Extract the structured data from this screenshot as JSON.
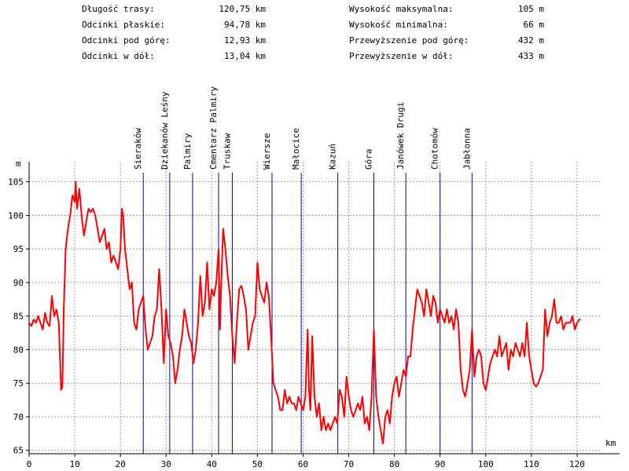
{
  "stats_left": [
    {
      "label": "Długość trasy:",
      "value": "120,75 km"
    },
    {
      "label": "Odcinki płaskie:",
      "value": "94,78 km"
    },
    {
      "label": "Odcinki pod górę:",
      "value": "12,93 km"
    },
    {
      "label": "Odcinki w dół:",
      "value": "13,04 km"
    }
  ],
  "stats_right": [
    {
      "label": "Wysokość maksymalna:",
      "value": "105 m"
    },
    {
      "label": "Wysokość minimalna:",
      "value": "66 m"
    },
    {
      "label": "Przewyższenie pod górę:",
      "value": "432 m"
    },
    {
      "label": "Przewyższenie w dół:",
      "value": "433 m"
    }
  ],
  "chart_data": {
    "type": "line",
    "ylabel": "m",
    "xlabel": "km",
    "xlim": [
      0,
      125
    ],
    "ylim": [
      64.5,
      108
    ],
    "xticks": [
      0,
      10,
      20,
      30,
      40,
      50,
      60,
      70,
      80,
      90,
      100,
      110,
      120
    ],
    "yticks": [
      65,
      70,
      75,
      80,
      85,
      90,
      95,
      100,
      105
    ],
    "grid": true,
    "line_color": "#ff0000",
    "marker_color": "#0000cc",
    "markers": [
      {
        "name": "Sieraków",
        "km": 25
      },
      {
        "name": "Dziekanów Leśny",
        "km": 30.8
      },
      {
        "name": "Palmiry",
        "km": 35.8
      },
      {
        "name": "Cmentarz Palmiry",
        "km": 41.5
      },
      {
        "name": "Truskaw",
        "km": 44.5
      },
      {
        "name": "Wiersze",
        "km": 53.2
      },
      {
        "name": "Małocice",
        "km": 59.6
      },
      {
        "name": "Kazuń",
        "km": 67.6
      },
      {
        "name": "Góra",
        "km": 75.5
      },
      {
        "name": "Janówek Drugi",
        "km": 82.5
      },
      {
        "name": "Chotomów",
        "km": 90
      },
      {
        "name": "Jabłonna",
        "km": 97
      }
    ],
    "profile": [
      [
        0,
        84
      ],
      [
        0.5,
        83.5
      ],
      [
        1,
        84.5
      ],
      [
        1.5,
        84
      ],
      [
        2,
        85
      ],
      [
        2.5,
        84
      ],
      [
        3,
        83
      ],
      [
        3.5,
        85.5
      ],
      [
        4,
        84
      ],
      [
        4.5,
        83.5
      ],
      [
        5,
        88
      ],
      [
        5.5,
        85
      ],
      [
        6,
        86
      ],
      [
        6.5,
        84
      ],
      [
        7,
        74
      ],
      [
        7.3,
        74.5
      ],
      [
        7.6,
        86
      ],
      [
        8,
        95
      ],
      [
        8.5,
        98
      ],
      [
        9,
        100
      ],
      [
        9.5,
        103
      ],
      [
        10,
        102
      ],
      [
        10.2,
        105
      ],
      [
        10.5,
        101
      ],
      [
        11,
        104
      ],
      [
        11.5,
        100
      ],
      [
        12,
        97
      ],
      [
        12.5,
        99
      ],
      [
        13,
        101
      ],
      [
        13.5,
        100.5
      ],
      [
        14,
        101
      ],
      [
        14.5,
        100
      ],
      [
        15,
        98
      ],
      [
        15.5,
        96
      ],
      [
        16,
        97
      ],
      [
        16.5,
        98
      ],
      [
        17,
        95
      ],
      [
        17.5,
        96
      ],
      [
        18,
        93
      ],
      [
        18.5,
        94
      ],
      [
        19,
        93
      ],
      [
        19.5,
        92
      ],
      [
        20,
        95
      ],
      [
        20.3,
        101
      ],
      [
        20.6,
        100
      ],
      [
        21,
        95
      ],
      [
        21.5,
        92
      ],
      [
        22,
        89
      ],
      [
        22.5,
        90
      ],
      [
        23,
        84
      ],
      [
        23.5,
        83
      ],
      [
        24,
        86
      ],
      [
        24.5,
        87
      ],
      [
        25,
        88
      ],
      [
        25.5,
        83
      ],
      [
        26,
        80
      ],
      [
        26.5,
        81
      ],
      [
        27,
        82
      ],
      [
        27.5,
        85
      ],
      [
        28,
        86
      ],
      [
        28.5,
        92
      ],
      [
        29,
        86
      ],
      [
        29.5,
        78
      ],
      [
        30,
        86
      ],
      [
        30.5,
        82
      ],
      [
        31,
        81
      ],
      [
        31.5,
        79
      ],
      [
        32,
        75
      ],
      [
        32.5,
        77
      ],
      [
        33,
        80
      ],
      [
        33.5,
        82
      ],
      [
        34,
        86
      ],
      [
        34.5,
        84
      ],
      [
        35,
        82
      ],
      [
        35.5,
        81
      ],
      [
        36,
        78
      ],
      [
        36.5,
        80
      ],
      [
        37,
        84
      ],
      [
        37.5,
        91
      ],
      [
        38,
        85
      ],
      [
        38.5,
        87
      ],
      [
        39,
        93
      ],
      [
        39.5,
        86
      ],
      [
        40,
        89
      ],
      [
        40.5,
        88
      ],
      [
        41,
        90
      ],
      [
        41.5,
        95
      ],
      [
        41.8,
        83
      ],
      [
        42,
        88
      ],
      [
        42.5,
        98
      ],
      [
        43,
        95
      ],
      [
        43.5,
        91
      ],
      [
        44,
        88
      ],
      [
        44.5,
        82
      ],
      [
        45,
        78
      ],
      [
        45.5,
        84
      ],
      [
        46,
        89
      ],
      [
        46.5,
        89.5
      ],
      [
        47,
        88
      ],
      [
        47.5,
        86
      ],
      [
        48,
        80
      ],
      [
        48.5,
        82
      ],
      [
        49,
        84
      ],
      [
        49.5,
        85
      ],
      [
        50,
        93
      ],
      [
        50.5,
        89
      ],
      [
        51,
        88
      ],
      [
        51.5,
        87
      ],
      [
        52,
        90
      ],
      [
        52.5,
        88
      ],
      [
        53,
        82
      ],
      [
        53.5,
        75
      ],
      [
        54,
        74
      ],
      [
        54.5,
        73
      ],
      [
        55,
        71
      ],
      [
        55.5,
        71
      ],
      [
        56,
        74
      ],
      [
        56.5,
        72
      ],
      [
        57,
        73
      ],
      [
        57.5,
        72
      ],
      [
        58,
        72
      ],
      [
        58.5,
        71
      ],
      [
        59,
        73
      ],
      [
        59.5,
        72
      ],
      [
        60,
        71
      ],
      [
        60.5,
        73
      ],
      [
        61,
        83
      ],
      [
        61.3,
        74
      ],
      [
        61.6,
        71
      ],
      [
        62,
        82
      ],
      [
        62.5,
        73
      ],
      [
        63,
        70
      ],
      [
        63.5,
        72
      ],
      [
        64,
        68
      ],
      [
        64.5,
        70
      ],
      [
        65,
        68
      ],
      [
        65.5,
        69
      ],
      [
        66,
        68
      ],
      [
        66.5,
        69
      ],
      [
        67,
        70
      ],
      [
        67.5,
        69
      ],
      [
        68,
        74
      ],
      [
        68.5,
        73
      ],
      [
        69,
        70
      ],
      [
        69.5,
        76
      ],
      [
        70,
        73
      ],
      [
        70.5,
        71
      ],
      [
        71,
        70
      ],
      [
        71.5,
        71
      ],
      [
        72,
        72
      ],
      [
        72.5,
        71
      ],
      [
        73,
        73
      ],
      [
        73.5,
        69
      ],
      [
        74,
        70
      ],
      [
        74.5,
        68
      ],
      [
        75,
        73
      ],
      [
        75.5,
        83
      ],
      [
        76,
        73
      ],
      [
        76.5,
        70
      ],
      [
        77,
        68
      ],
      [
        77.5,
        66
      ],
      [
        78,
        70
      ],
      [
        78.5,
        71
      ],
      [
        79,
        69
      ],
      [
        79.5,
        73
      ],
      [
        80,
        75
      ],
      [
        80.5,
        76
      ],
      [
        81,
        73
      ],
      [
        81.5,
        75
      ],
      [
        82,
        77
      ],
      [
        82.5,
        76
      ],
      [
        83,
        79
      ],
      [
        83.5,
        79
      ],
      [
        84,
        83
      ],
      [
        84.5,
        86
      ],
      [
        85,
        89
      ],
      [
        85.5,
        88
      ],
      [
        86,
        87
      ],
      [
        86.5,
        85
      ],
      [
        87,
        89
      ],
      [
        87.5,
        87
      ],
      [
        88,
        85
      ],
      [
        88.5,
        88
      ],
      [
        89,
        87
      ],
      [
        89.5,
        84
      ],
      [
        90,
        86
      ],
      [
        90.5,
        85
      ],
      [
        91,
        84
      ],
      [
        91.5,
        86
      ],
      [
        92,
        84
      ],
      [
        92.5,
        85
      ],
      [
        93,
        83
      ],
      [
        93.5,
        86
      ],
      [
        94,
        84
      ],
      [
        94.5,
        77
      ],
      [
        95,
        74
      ],
      [
        95.5,
        73
      ],
      [
        96,
        75
      ],
      [
        96.5,
        77
      ],
      [
        97,
        83
      ],
      [
        97.5,
        76
      ],
      [
        98,
        79
      ],
      [
        98.5,
        80
      ],
      [
        99,
        79
      ],
      [
        99.5,
        75
      ],
      [
        100,
        74
      ],
      [
        100.5,
        76
      ],
      [
        101,
        78
      ],
      [
        101.5,
        79
      ],
      [
        102,
        80
      ],
      [
        102.5,
        79
      ],
      [
        103,
        82
      ],
      [
        103.5,
        79
      ],
      [
        104,
        80
      ],
      [
        104.5,
        81
      ],
      [
        105,
        77
      ],
      [
        105.5,
        80
      ],
      [
        106,
        79
      ],
      [
        106.5,
        81
      ],
      [
        107,
        80
      ],
      [
        107.5,
        79
      ],
      [
        108,
        81
      ],
      [
        108.5,
        79
      ],
      [
        109,
        84
      ],
      [
        109.5,
        79
      ],
      [
        110,
        77
      ],
      [
        110.5,
        75
      ],
      [
        111,
        74.5
      ],
      [
        111.5,
        75
      ],
      [
        112,
        76
      ],
      [
        112.5,
        77
      ],
      [
        113,
        86
      ],
      [
        113.5,
        82
      ],
      [
        114,
        84
      ],
      [
        114.5,
        85
      ],
      [
        115,
        87.5
      ],
      [
        115.5,
        84
      ],
      [
        116,
        84
      ],
      [
        116.5,
        85
      ],
      [
        117,
        83
      ],
      [
        117.5,
        84
      ],
      [
        118,
        84
      ],
      [
        118.5,
        84
      ],
      [
        119,
        85
      ],
      [
        119.5,
        83
      ],
      [
        120,
        84
      ],
      [
        120.5,
        84.5
      ],
      [
        120.75,
        84.5
      ]
    ]
  }
}
